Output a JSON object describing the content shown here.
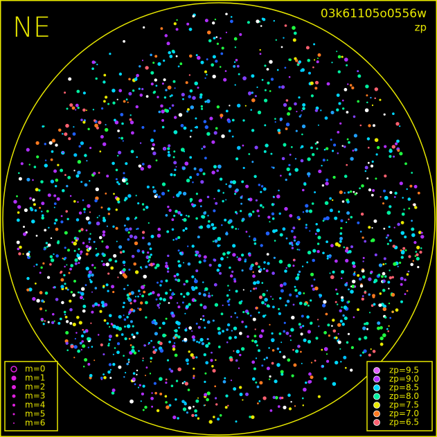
{
  "header": {
    "direction": "NE",
    "image_id": "03k61105o0556w",
    "mode": "zp"
  },
  "magnitude_legend": {
    "items": [
      "m=0",
      "m=1",
      "m=2",
      "m=3",
      "m=4",
      "m=5",
      "m=6"
    ]
  },
  "zp_legend": {
    "items": [
      {
        "label": "zp=9.5",
        "color": "#e060ff"
      },
      {
        "label": "zp=9.0",
        "color": "#b030ff"
      },
      {
        "label": "zp=8.5",
        "color": "#00d8ff"
      },
      {
        "label": "zp=8.0",
        "color": "#00f0a0"
      },
      {
        "label": "zp=7.5",
        "color": "#e8e800"
      },
      {
        "label": "zp=7.0",
        "color": "#ff7a20"
      },
      {
        "label": "zp=6.5",
        "color": "#ff6070"
      }
    ]
  }
}
